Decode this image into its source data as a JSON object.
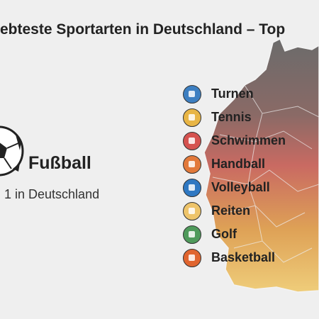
{
  "header": {
    "title": "ebteste Sportarten in Deutschland – Top"
  },
  "feature": {
    "name": "Fußball",
    "rank_text": "1 in Deutschland"
  },
  "sports": [
    {
      "label": "Turnen",
      "color": "#3d7fc1"
    },
    {
      "label": "Tennis",
      "color": "#e8b545"
    },
    {
      "label": "Schwimmen",
      "color": "#d5524f"
    },
    {
      "label": "Handball",
      "color": "#e2793a"
    },
    {
      "label": "Volleyball",
      "color": "#2f78c2"
    },
    {
      "label": "Reiten",
      "color": "#eec46a"
    },
    {
      "label": "Golf",
      "color": "#4f9a5b"
    },
    {
      "label": "Basketball",
      "color": "#e0652f"
    }
  ]
}
